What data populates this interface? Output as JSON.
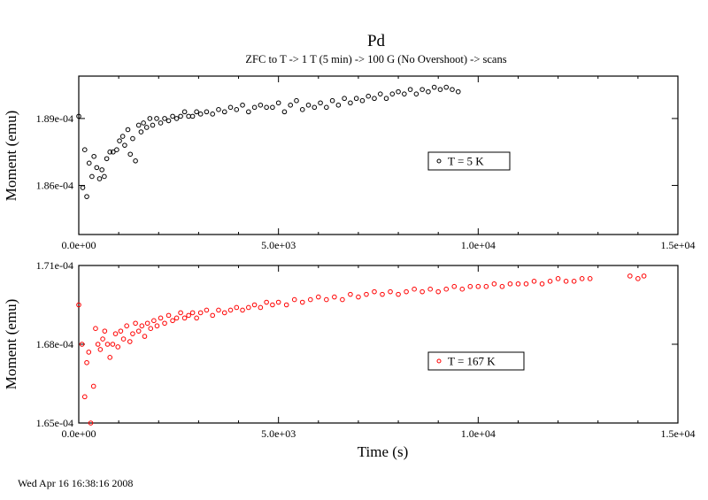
{
  "title": "Pd",
  "subtitle": "ZFC to T -> 1 T (5 min) -> 100 G (No Overshoot) -> scans",
  "footer": "Wed Apr 16 16:38:16 2008",
  "colors": {
    "series_top": "#000000",
    "series_bottom": "#ff0000",
    "axis": "#000000",
    "background": "#ffffff"
  },
  "chart_data": [
    {
      "type": "scatter",
      "panel": "top",
      "title": "",
      "xlabel": "",
      "ylabel": "Moment (emu)",
      "xlim": [
        0,
        15000
      ],
      "ylim": [
        0.0001838,
        0.0001909
      ],
      "grid": false,
      "xtick_values": [
        0,
        5000,
        10000,
        15000
      ],
      "xtick_labels": [
        "0.0e+00",
        "5.0e+03",
        "1.0e+04",
        "1.5e+04"
      ],
      "ytick_values": [
        0.000186,
        0.000189
      ],
      "ytick_labels": [
        "1.86e-04",
        "1.89e-04"
      ],
      "legend_position": "right-middle",
      "series": [
        {
          "name": "T = 5 K",
          "color": "#000000",
          "marker": "circle",
          "points": [
            [
              0,
              0.0001891
            ],
            [
              100,
              0.0001859
            ],
            [
              150,
              0.0001876
            ],
            [
              200,
              0.0001855
            ],
            [
              260,
              0.000187
            ],
            [
              330,
              0.0001864
            ],
            [
              380,
              0.0001873
            ],
            [
              450,
              0.0001868
            ],
            [
              520,
              0.0001863
            ],
            [
              580,
              0.0001867
            ],
            [
              640,
              0.0001864
            ],
            [
              700,
              0.0001872
            ],
            [
              780,
              0.0001875
            ],
            [
              860,
              0.0001875
            ],
            [
              950,
              0.0001876
            ],
            [
              1020,
              0.000188
            ],
            [
              1100,
              0.0001882
            ],
            [
              1150,
              0.0001878
            ],
            [
              1230,
              0.0001885
            ],
            [
              1290,
              0.0001874
            ],
            [
              1350,
              0.0001881
            ],
            [
              1420,
              0.0001871
            ],
            [
              1500,
              0.0001887
            ],
            [
              1560,
              0.0001884
            ],
            [
              1620,
              0.0001888
            ],
            [
              1700,
              0.0001886
            ],
            [
              1780,
              0.000189
            ],
            [
              1850,
              0.0001887
            ],
            [
              1950,
              0.000189
            ],
            [
              2050,
              0.0001888
            ],
            [
              2150,
              0.000189
            ],
            [
              2250,
              0.0001889
            ],
            [
              2350,
              0.0001891
            ],
            [
              2450,
              0.000189
            ],
            [
              2550,
              0.0001891
            ],
            [
              2650,
              0.0001893
            ],
            [
              2750,
              0.0001891
            ],
            [
              2850,
              0.0001891
            ],
            [
              2950,
              0.0001893
            ],
            [
              3050,
              0.0001892
            ],
            [
              3200,
              0.0001893
            ],
            [
              3350,
              0.0001892
            ],
            [
              3500,
              0.0001894
            ],
            [
              3650,
              0.0001893
            ],
            [
              3800,
              0.0001895
            ],
            [
              3950,
              0.0001894
            ],
            [
              4100,
              0.0001896
            ],
            [
              4250,
              0.0001893
            ],
            [
              4400,
              0.0001895
            ],
            [
              4550,
              0.0001896
            ],
            [
              4700,
              0.0001895
            ],
            [
              4850,
              0.0001895
            ],
            [
              5000,
              0.0001897
            ],
            [
              5150,
              0.0001893
            ],
            [
              5300,
              0.0001896
            ],
            [
              5450,
              0.0001898
            ],
            [
              5600,
              0.0001894
            ],
            [
              5750,
              0.0001896
            ],
            [
              5900,
              0.0001895
            ],
            [
              6050,
              0.0001897
            ],
            [
              6200,
              0.0001895
            ],
            [
              6350,
              0.0001898
            ],
            [
              6500,
              0.0001896
            ],
            [
              6650,
              0.0001899
            ],
            [
              6800,
              0.0001897
            ],
            [
              6950,
              0.0001899
            ],
            [
              7100,
              0.0001898
            ],
            [
              7250,
              0.00019
            ],
            [
              7400,
              0.0001899
            ],
            [
              7550,
              0.0001901
            ],
            [
              7700,
              0.0001899
            ],
            [
              7850,
              0.0001901
            ],
            [
              8000,
              0.0001902
            ],
            [
              8150,
              0.0001901
            ],
            [
              8300,
              0.0001903
            ],
            [
              8450,
              0.0001901
            ],
            [
              8600,
              0.0001903
            ],
            [
              8750,
              0.0001902
            ],
            [
              8900,
              0.0001904
            ],
            [
              9050,
              0.0001903
            ],
            [
              9200,
              0.0001904
            ],
            [
              9350,
              0.0001903
            ],
            [
              9500,
              0.0001902
            ]
          ]
        }
      ]
    },
    {
      "type": "scatter",
      "panel": "bottom",
      "title": "",
      "xlabel": "Time (s)",
      "ylabel": "Moment (emu)",
      "xlim": [
        0,
        15000
      ],
      "ylim": [
        0.000165,
        0.000171
      ],
      "grid": false,
      "xtick_values": [
        0,
        5000,
        10000,
        15000
      ],
      "xtick_labels": [
        "0.0e+00",
        "5.0e+03",
        "1.0e+04",
        "1.5e+04"
      ],
      "ytick_values": [
        0.000165,
        0.000168,
        0.000171
      ],
      "ytick_labels": [
        "1.65e-04",
        "1.68e-04",
        "1.71e-04"
      ],
      "legend_position": "right-middle",
      "series": [
        {
          "name": "T = 167 K",
          "color": "#ff0000",
          "marker": "circle",
          "points": [
            [
              0,
              0.0001695
            ],
            [
              80,
              0.000168
            ],
            [
              150,
              0.000166
            ],
            [
              200,
              0.0001673
            ],
            [
              250,
              0.0001677
            ],
            [
              300,
              0.000165
            ],
            [
              370,
              0.0001664
            ],
            [
              420,
              0.0001686
            ],
            [
              480,
              0.000168
            ],
            [
              540,
              0.0001678
            ],
            [
              600,
              0.0001682
            ],
            [
              650,
              0.0001685
            ],
            [
              720,
              0.000168
            ],
            [
              780,
              0.0001675
            ],
            [
              850,
              0.000168
            ],
            [
              920,
              0.0001684
            ],
            [
              980,
              0.0001679
            ],
            [
              1050,
              0.0001685
            ],
            [
              1120,
              0.0001682
            ],
            [
              1200,
              0.0001687
            ],
            [
              1280,
              0.0001681
            ],
            [
              1350,
              0.0001684
            ],
            [
              1420,
              0.0001688
            ],
            [
              1500,
              0.0001685
            ],
            [
              1580,
              0.0001687
            ],
            [
              1650,
              0.0001683
            ],
            [
              1720,
              0.0001688
            ],
            [
              1800,
              0.0001686
            ],
            [
              1880,
              0.0001689
            ],
            [
              1960,
              0.0001687
            ],
            [
              2050,
              0.000169
            ],
            [
              2150,
              0.0001688
            ],
            [
              2250,
              0.0001691
            ],
            [
              2350,
              0.0001689
            ],
            [
              2450,
              0.000169
            ],
            [
              2550,
              0.0001692
            ],
            [
              2650,
              0.000169
            ],
            [
              2750,
              0.0001691
            ],
            [
              2850,
              0.0001692
            ],
            [
              2950,
              0.000169
            ],
            [
              3050,
              0.0001692
            ],
            [
              3200,
              0.0001693
            ],
            [
              3350,
              0.0001691
            ],
            [
              3500,
              0.0001693
            ],
            [
              3650,
              0.0001692
            ],
            [
              3800,
              0.0001693
            ],
            [
              3950,
              0.0001694
            ],
            [
              4100,
              0.0001693
            ],
            [
              4250,
              0.0001694
            ],
            [
              4400,
              0.0001695
            ],
            [
              4550,
              0.0001694
            ],
            [
              4700,
              0.0001696
            ],
            [
              4850,
              0.0001695
            ],
            [
              5000,
              0.0001696
            ],
            [
              5200,
              0.0001695
            ],
            [
              5400,
              0.0001697
            ],
            [
              5600,
              0.0001696
            ],
            [
              5800,
              0.0001697
            ],
            [
              6000,
              0.0001698
            ],
            [
              6200,
              0.0001697
            ],
            [
              6400,
              0.0001698
            ],
            [
              6600,
              0.0001697
            ],
            [
              6800,
              0.0001699
            ],
            [
              7000,
              0.0001698
            ],
            [
              7200,
              0.0001699
            ],
            [
              7400,
              0.00017
            ],
            [
              7600,
              0.0001699
            ],
            [
              7800,
              0.00017
            ],
            [
              8000,
              0.0001699
            ],
            [
              8200,
              0.00017
            ],
            [
              8400,
              0.0001701
            ],
            [
              8600,
              0.00017
            ],
            [
              8800,
              0.0001701
            ],
            [
              9000,
              0.00017
            ],
            [
              9200,
              0.0001701
            ],
            [
              9400,
              0.0001702
            ],
            [
              9600,
              0.0001701
            ],
            [
              9800,
              0.0001702
            ],
            [
              10000,
              0.0001702
            ],
            [
              10200,
              0.0001702
            ],
            [
              10400,
              0.0001703
            ],
            [
              10600,
              0.0001702
            ],
            [
              10800,
              0.0001703
            ],
            [
              11000,
              0.0001703
            ],
            [
              11200,
              0.0001703
            ],
            [
              11400,
              0.0001704
            ],
            [
              11600,
              0.0001703
            ],
            [
              11800,
              0.0001704
            ],
            [
              12000,
              0.0001705
            ],
            [
              12200,
              0.0001704
            ],
            [
              12400,
              0.0001704
            ],
            [
              12600,
              0.0001705
            ],
            [
              12800,
              0.0001705
            ],
            [
              13800,
              0.0001706
            ],
            [
              14000,
              0.0001705
            ],
            [
              14150,
              0.0001706
            ]
          ]
        }
      ]
    }
  ]
}
